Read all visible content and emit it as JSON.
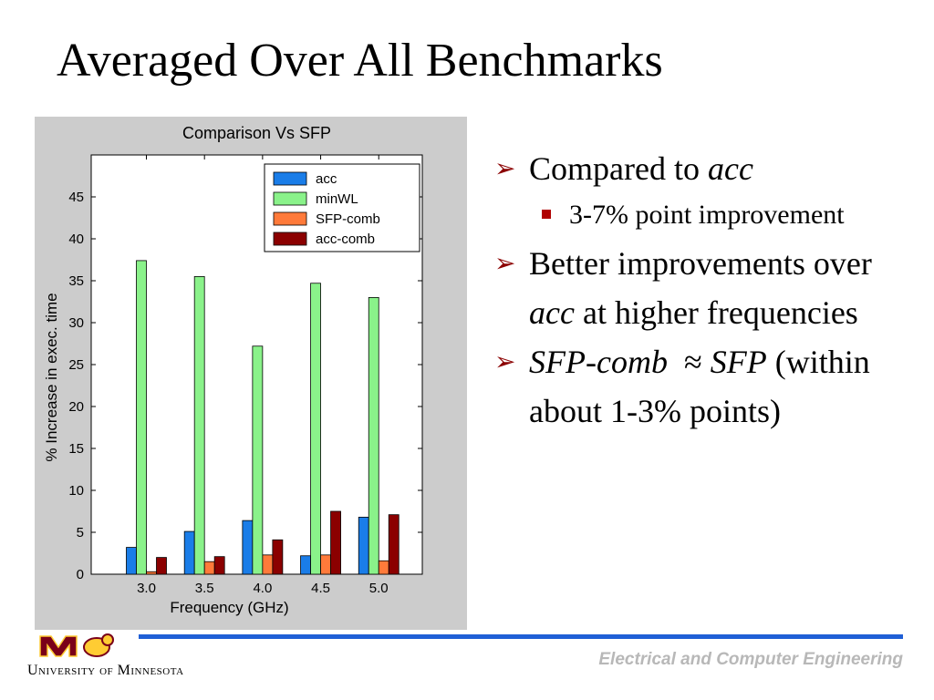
{
  "slide": {
    "title": "Averaged Over All Benchmarks",
    "footer": "Electrical and Computer Engineering",
    "university": "University of Minnesota",
    "colors": {
      "footer_line": "#1f5fd6",
      "bullet_arrow": "#8b0000",
      "logo": "#7a0019"
    }
  },
  "bullets": [
    {
      "level": 1,
      "parts": [
        {
          "text": "Compared to "
        },
        {
          "text": "acc",
          "italic": true
        }
      ]
    },
    {
      "level": 2,
      "parts": [
        {
          "text": "3-7% point improvement"
        }
      ]
    },
    {
      "level": 1,
      "parts": [
        {
          "text": "Better improvements over "
        },
        {
          "text": "acc",
          "italic": true
        },
        {
          "text": " at higher frequencies"
        }
      ]
    },
    {
      "level": 1,
      "parts": [
        {
          "text": "SFP-comb",
          "italic": true
        },
        {
          "text": "  ≈ "
        },
        {
          "text": "SFP",
          "italic": true
        },
        {
          "text": " (within about 1-3% points)"
        }
      ]
    }
  ],
  "chart_data": {
    "type": "bar",
    "title": "Comparison Vs SFP",
    "xlabel": "Frequency (GHz)",
    "ylabel": "% Increase in exec. time",
    "categories": [
      "3.0",
      "3.5",
      "4.0",
      "4.5",
      "5.0"
    ],
    "ylim": [
      0,
      50
    ],
    "yticks": [
      0,
      5,
      10,
      15,
      20,
      25,
      30,
      35,
      40,
      45
    ],
    "legend_position": "top-right",
    "grid": false,
    "series": [
      {
        "name": "acc",
        "color": "#1a7de8",
        "values": [
          3.2,
          5.1,
          6.4,
          2.2,
          6.8
        ]
      },
      {
        "name": "minWL",
        "color": "#8af28a",
        "values": [
          37.4,
          35.5,
          27.2,
          34.7,
          33.0
        ]
      },
      {
        "name": "SFP-comb",
        "color": "#ff7a3a",
        "values": [
          0.3,
          1.5,
          2.3,
          2.3,
          1.6
        ]
      },
      {
        "name": "acc-comb",
        "color": "#8b0000",
        "values": [
          2.0,
          2.1,
          4.1,
          7.5,
          7.1
        ]
      }
    ]
  }
}
